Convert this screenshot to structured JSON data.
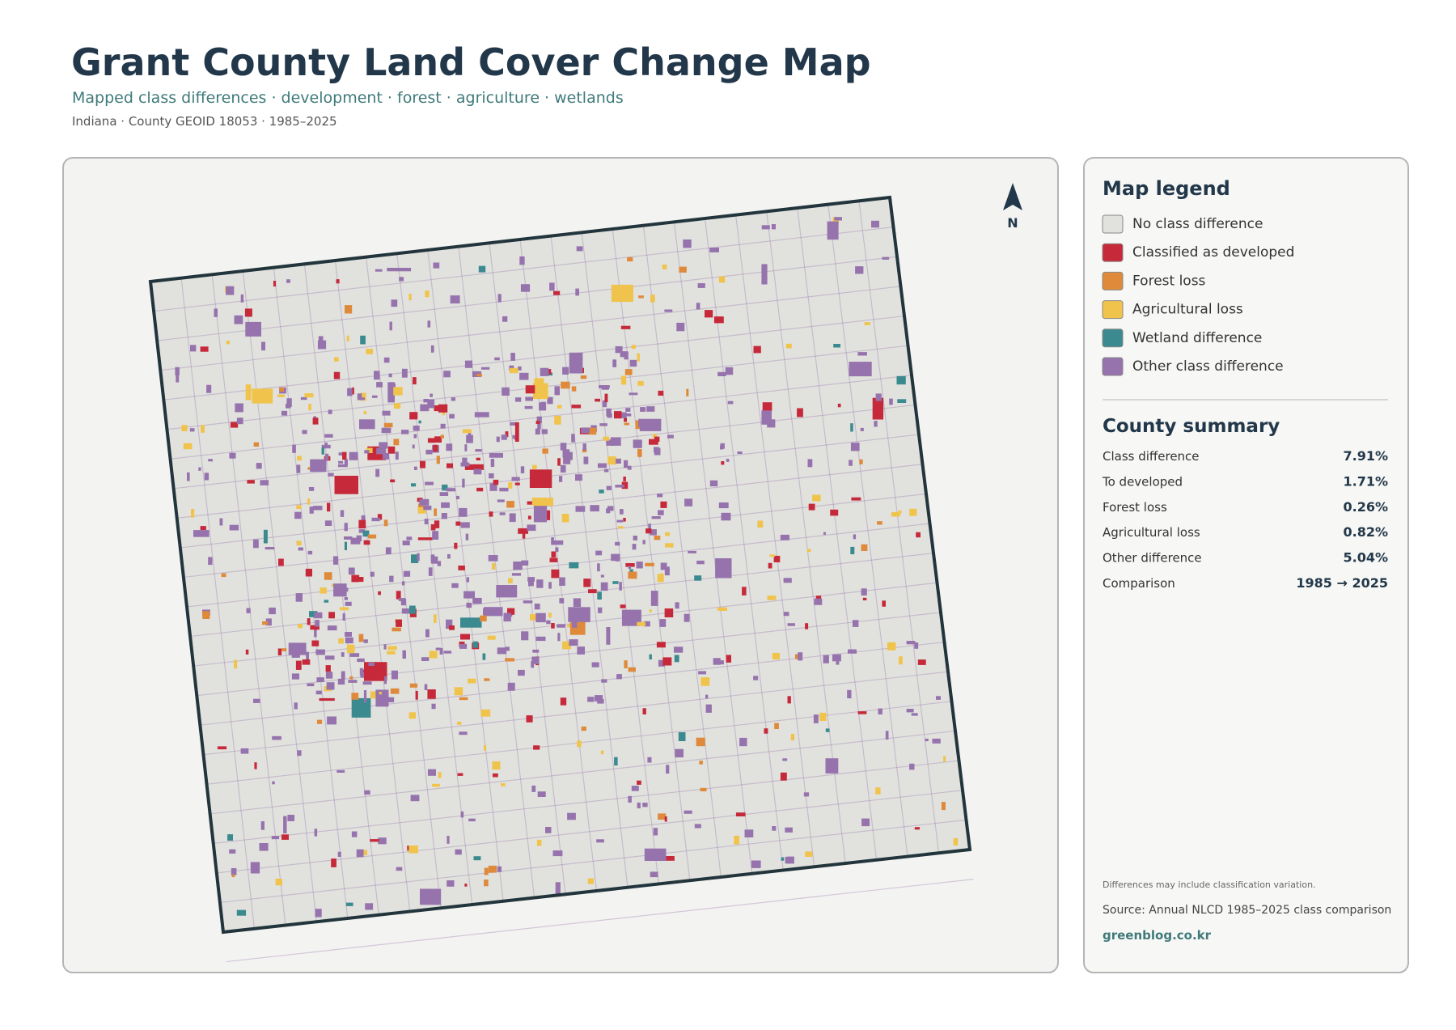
{
  "header": {
    "title": "Grant County Land Cover Change Map",
    "subtitle": "Mapped class differences · development · forest · agriculture · wetlands",
    "meta": "Indiana · County GEOID 18053 · 1985–2025"
  },
  "map": {
    "north": "N"
  },
  "legend": {
    "title": "Map legend",
    "items": [
      {
        "label": "No class difference",
        "color": "#e1e2de"
      },
      {
        "label": "Classified as developed",
        "color": "#c62a3a"
      },
      {
        "label": "Forest loss",
        "color": "#de8a3a"
      },
      {
        "label": "Agricultural loss",
        "color": "#f0c44c"
      },
      {
        "label": "Wetland difference",
        "color": "#3b8a8f"
      },
      {
        "label": "Other class difference",
        "color": "#9673ad"
      }
    ]
  },
  "summary": {
    "title": "County summary",
    "rows": [
      {
        "label": "Class difference",
        "value": "7.91%"
      },
      {
        "label": "To developed",
        "value": "1.71%"
      },
      {
        "label": "Forest loss",
        "value": "0.26%"
      },
      {
        "label": "Agricultural loss",
        "value": "0.82%"
      },
      {
        "label": "Other difference",
        "value": "5.04%"
      },
      {
        "label": "Comparison",
        "value": "1985 → 2025"
      }
    ]
  },
  "footer": {
    "note": "Differences may include classification variation.",
    "source": "Source: Annual NLCD 1985–2025 class comparison",
    "site": "greenblog.co.kr"
  }
}
